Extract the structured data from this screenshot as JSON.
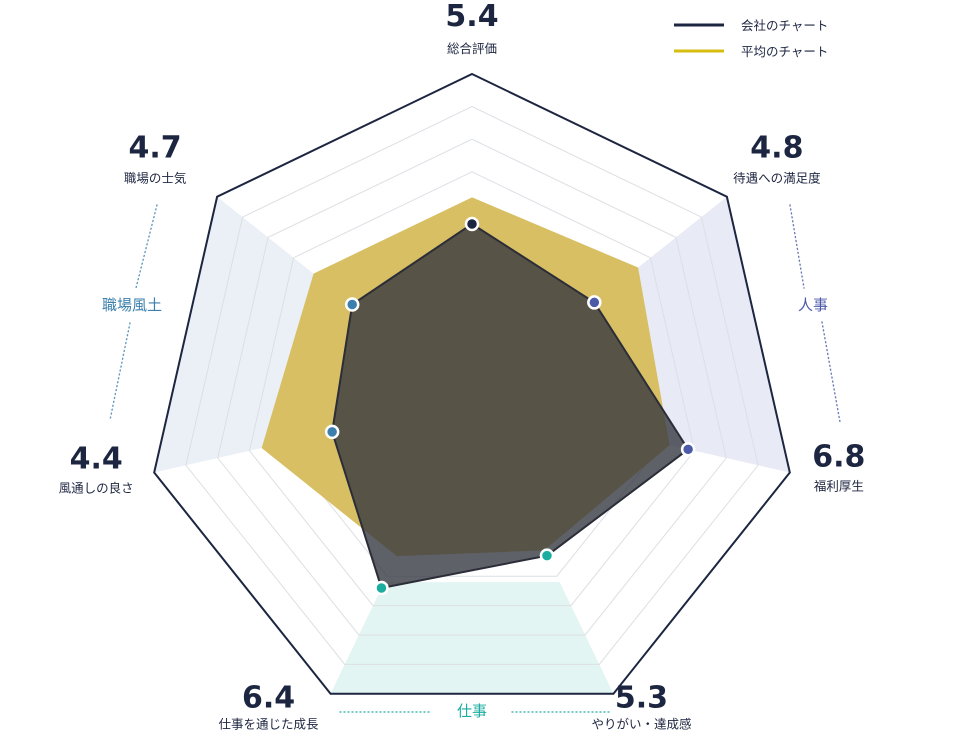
{
  "legend": {
    "company": {
      "label": "会社のチャート",
      "color": "#1d2641"
    },
    "average": {
      "label": "平均のチャート",
      "color": "#d7bd10"
    }
  },
  "chart_data": {
    "type": "radar",
    "axes": [
      {
        "label": "総合評価",
        "score": "5.4"
      },
      {
        "label": "待遇への満足度",
        "score": "4.8"
      },
      {
        "label": "福利厚生",
        "score": "6.8"
      },
      {
        "label": "やりがい・達成感",
        "score": "5.3"
      },
      {
        "label": "仕事を通じた成長",
        "score": "6.4"
      },
      {
        "label": "風通しの良さ",
        "score": "4.4"
      },
      {
        "label": "職場の士気",
        "score": "4.7"
      }
    ],
    "range": [
      0,
      10
    ],
    "series": [
      {
        "name": "会社のチャート",
        "values": [
          5.4,
          4.8,
          6.8,
          5.3,
          6.4,
          4.4,
          4.7
        ]
      },
      {
        "name": "平均のチャート",
        "values": [
          6.2,
          6.5,
          6.2,
          5.1,
          5.3,
          6.6,
          6.2
        ]
      }
    ],
    "groups": [
      {
        "label": "職場風土",
        "axes": [
          "風通しの良さ",
          "職場の士気"
        ],
        "color": "#3c7fad",
        "fill": "#eaf0f6"
      },
      {
        "label": "人事",
        "axes": [
          "待遇への満足度",
          "福利厚生"
        ],
        "color": "#4c5aa8",
        "fill": "#e8eaf6"
      },
      {
        "label": "仕事",
        "axes": [
          "仕事を通じた成長",
          "やりがい・達成感"
        ],
        "color": "#1aada0",
        "fill": "#e3f5f2"
      }
    ],
    "point_colors": [
      "#1d2641",
      "#4c5aa8",
      "#4c5aa8",
      "#1aada0",
      "#1aada0",
      "#3c7fad",
      "#3c7fad"
    ]
  }
}
